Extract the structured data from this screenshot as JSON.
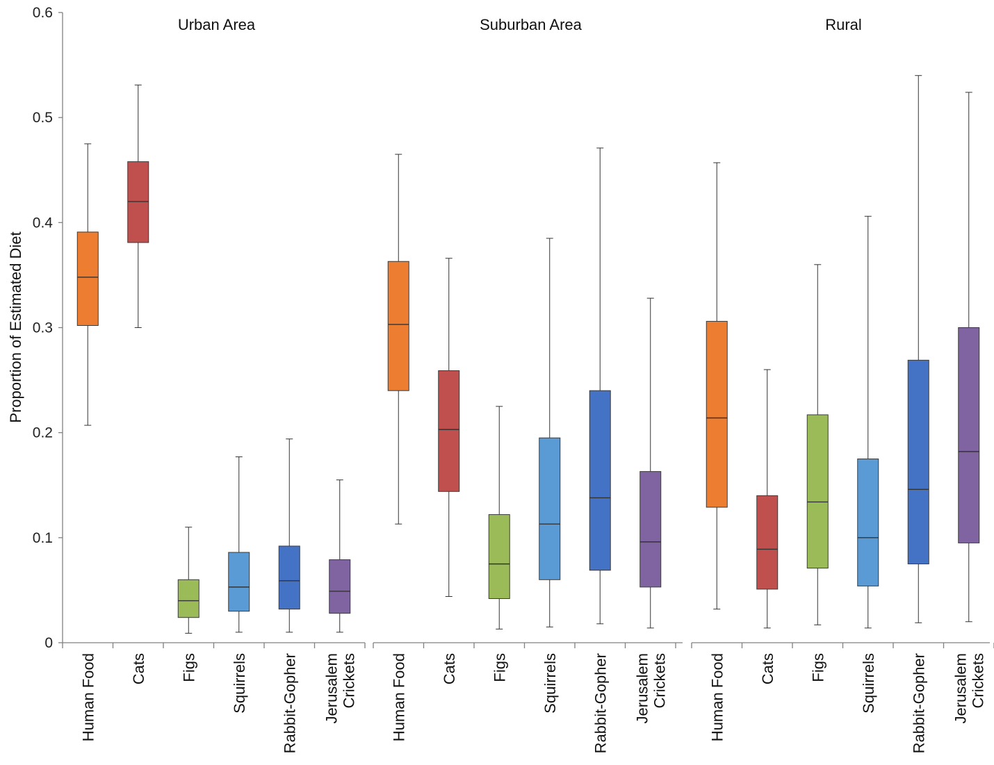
{
  "chart_data": {
    "type": "boxplot",
    "ylabel": "Proportion of Estimated Diet",
    "ylim": [
      0,
      0.6
    ],
    "yticks": [
      0,
      0.1,
      0.2,
      0.3,
      0.4,
      0.5,
      0.6
    ],
    "ytick_labels": [
      "0",
      "0.1",
      "0.2",
      "0.3",
      "0.4",
      "0.5",
      "0.6"
    ],
    "grid": false,
    "categories": [
      {
        "name": "Human Food",
        "lines": [
          "Human Food"
        ],
        "color": "#ED7D31"
      },
      {
        "name": "Cats",
        "lines": [
          "Cats"
        ],
        "color": "#C0504D"
      },
      {
        "name": "Figs",
        "lines": [
          "Figs"
        ],
        "color": "#9BBB59"
      },
      {
        "name": "Squirrels",
        "lines": [
          "Squirrels"
        ],
        "color": "#5B9BD5"
      },
      {
        "name": "Rabbit-Gopher",
        "lines": [
          "Rabbit-Gopher"
        ],
        "color": "#4472C4"
      },
      {
        "name": "Jerusalem Crickets",
        "lines": [
          "Jerusalem",
          "Crickets"
        ],
        "color": "#8064A2"
      }
    ],
    "groups": [
      {
        "title": "Urban Area",
        "boxes": [
          {
            "min": 0.207,
            "q1": 0.302,
            "median": 0.348,
            "q3": 0.391,
            "max": 0.475
          },
          {
            "min": 0.3,
            "q1": 0.381,
            "median": 0.42,
            "q3": 0.458,
            "max": 0.531
          },
          {
            "min": 0.009,
            "q1": 0.024,
            "median": 0.04,
            "q3": 0.06,
            "max": 0.11
          },
          {
            "min": 0.01,
            "q1": 0.03,
            "median": 0.053,
            "q3": 0.086,
            "max": 0.177
          },
          {
            "min": 0.01,
            "q1": 0.032,
            "median": 0.059,
            "q3": 0.092,
            "max": 0.194
          },
          {
            "min": 0.01,
            "q1": 0.028,
            "median": 0.049,
            "q3": 0.079,
            "max": 0.155
          }
        ]
      },
      {
        "title": "Suburban Area",
        "boxes": [
          {
            "min": 0.113,
            "q1": 0.24,
            "median": 0.303,
            "q3": 0.363,
            "max": 0.465
          },
          {
            "min": 0.044,
            "q1": 0.144,
            "median": 0.203,
            "q3": 0.259,
            "max": 0.366
          },
          {
            "min": 0.013,
            "q1": 0.042,
            "median": 0.075,
            "q3": 0.122,
            "max": 0.225
          },
          {
            "min": 0.015,
            "q1": 0.06,
            "median": 0.113,
            "q3": 0.195,
            "max": 0.385
          },
          {
            "min": 0.018,
            "q1": 0.069,
            "median": 0.138,
            "q3": 0.24,
            "max": 0.471
          },
          {
            "min": 0.014,
            "q1": 0.053,
            "median": 0.096,
            "q3": 0.163,
            "max": 0.328
          }
        ]
      },
      {
        "title": "Rural",
        "boxes": [
          {
            "min": 0.032,
            "q1": 0.129,
            "median": 0.214,
            "q3": 0.306,
            "max": 0.457
          },
          {
            "min": 0.014,
            "q1": 0.051,
            "median": 0.089,
            "q3": 0.14,
            "max": 0.26
          },
          {
            "min": 0.017,
            "q1": 0.071,
            "median": 0.134,
            "q3": 0.217,
            "max": 0.36
          },
          {
            "min": 0.014,
            "q1": 0.054,
            "median": 0.1,
            "q3": 0.175,
            "max": 0.406
          },
          {
            "min": 0.019,
            "q1": 0.075,
            "median": 0.146,
            "q3": 0.269,
            "max": 0.54
          },
          {
            "min": 0.02,
            "q1": 0.095,
            "median": 0.182,
            "q3": 0.3,
            "max": 0.524
          }
        ]
      }
    ]
  }
}
